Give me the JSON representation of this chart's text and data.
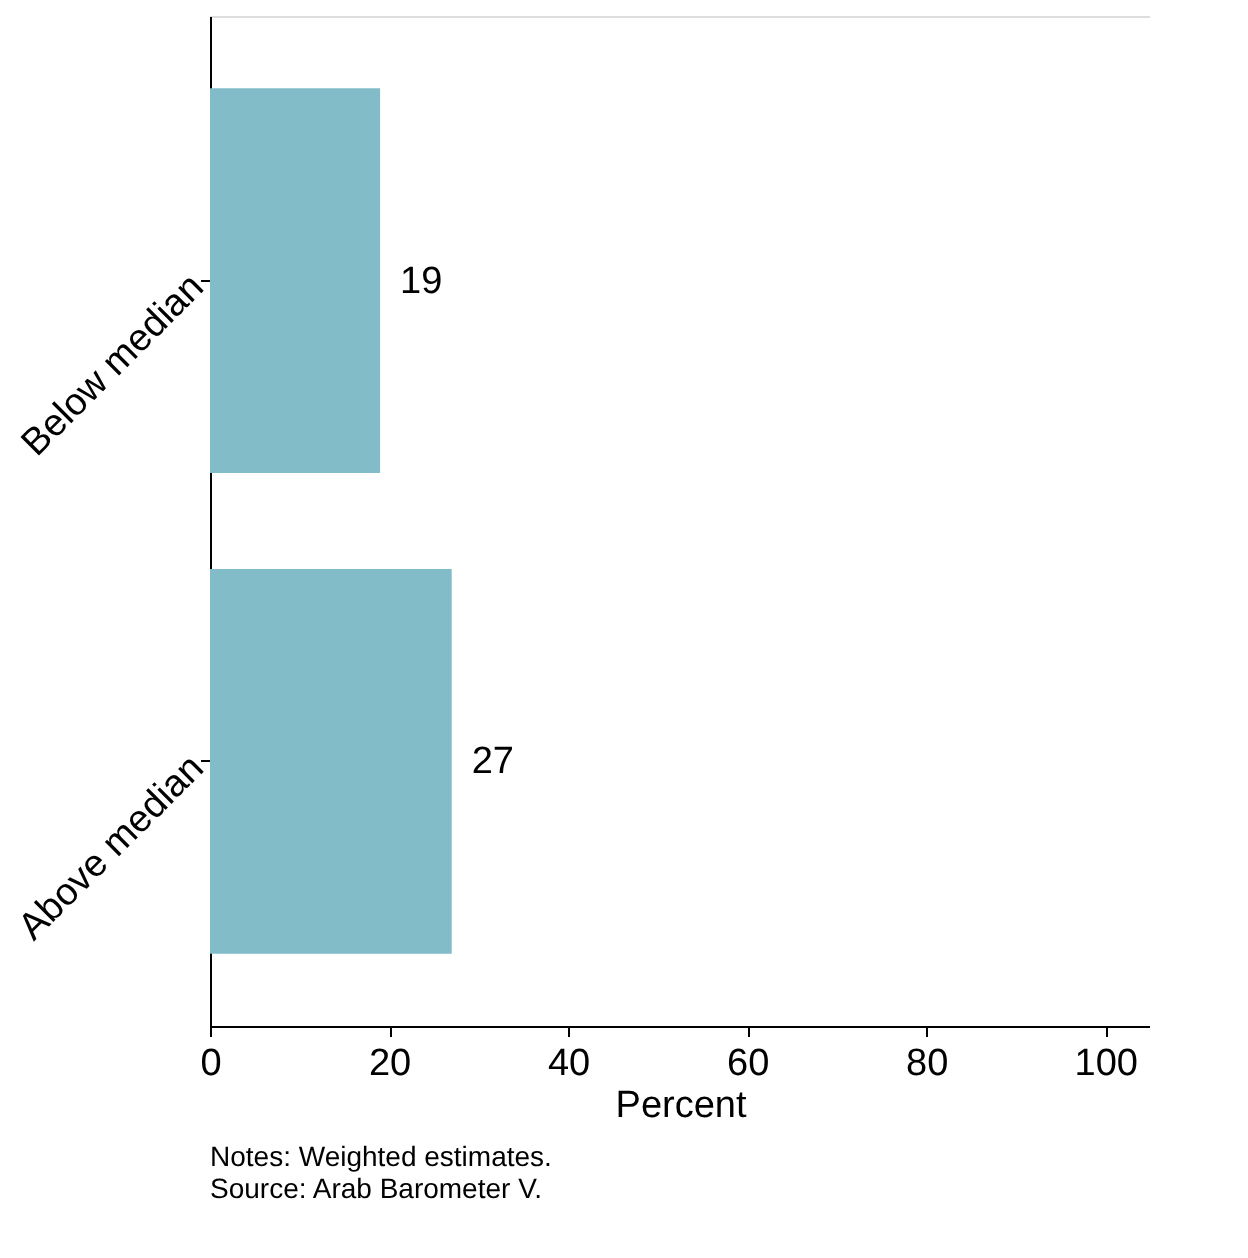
{
  "chart_data": {
    "type": "bar",
    "orientation": "horizontal",
    "categories": [
      "Below median",
      "Above median"
    ],
    "values": [
      19,
      27
    ],
    "color": "#82bcc8",
    "xlabel": "Percent",
    "xlim": [
      0,
      105
    ],
    "xticks": [
      0,
      20,
      40,
      60,
      80,
      100
    ],
    "data_labels": true,
    "grid": false,
    "annotations": [
      "Notes: Weighted estimates.",
      "Source: Arab Barometer V."
    ]
  }
}
